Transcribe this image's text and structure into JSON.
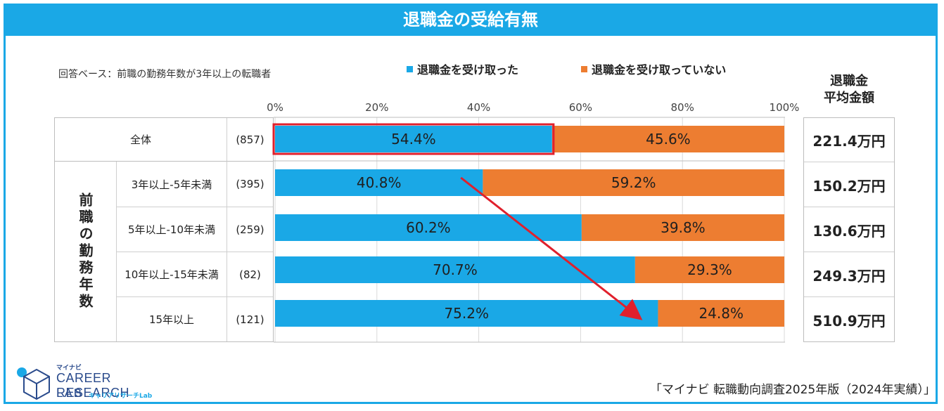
{
  "title": "退職金の受給有無",
  "base_note": "回答ベース：前職の勤務年数が3年以上の転職者",
  "legend": {
    "received": {
      "label": "退職金を受け取った",
      "color": "#1aa8e6"
    },
    "not_received": {
      "label": "退職金を受け取っていない",
      "color": "#ed7d31"
    }
  },
  "avg_header": {
    "line1": "退職金",
    "line2": "平均金額"
  },
  "group_label": "前職の勤務年数",
  "rows": [
    {
      "label": "全体",
      "n": "(857)",
      "avg": "221.4万円"
    },
    {
      "label": "3年以上-5年未満",
      "n": "(395)",
      "avg": "150.2万円"
    },
    {
      "label": "5年以上-10年未満",
      "n": "(259)",
      "avg": "130.6万円"
    },
    {
      "label": "10年以上-15年未満",
      "n": "(82)",
      "avg": "249.3万円"
    },
    {
      "label": "15年以上",
      "n": "(121)",
      "avg": "510.9万円"
    }
  ],
  "chart_data": {
    "type": "bar",
    "orientation": "horizontal",
    "stacked": true,
    "title": "退職金の受給有無",
    "categories": [
      "全体",
      "3年以上-5年未満",
      "5年以上-10年未満",
      "10年以上-15年未満",
      "15年以上"
    ],
    "series": [
      {
        "name": "退職金を受け取った",
        "values": [
          54.4,
          40.8,
          60.2,
          70.7,
          75.2
        ],
        "color": "#1aa8e6"
      },
      {
        "name": "退職金を受け取っていない",
        "values": [
          45.6,
          59.2,
          39.8,
          29.3,
          24.8
        ],
        "color": "#ed7d31"
      }
    ],
    "data_labels": [
      [
        "54.4%",
        "40.8%",
        "60.2%",
        "70.7%",
        "75.2%"
      ],
      [
        "45.6%",
        "59.2%",
        "39.8%",
        "29.3%",
        "24.8%"
      ]
    ],
    "x_ticks": [
      "0%",
      "20%",
      "40%",
      "60%",
      "80%",
      "100%"
    ],
    "xlim": [
      0,
      100
    ],
    "grid": true,
    "annotations": [
      "全体の受け取った割合を赤枠で強調",
      "勤務年数が長いほど受け取った割合が増加することを示す赤矢印"
    ]
  },
  "footer": {
    "source": "「マイナビ 転職動向調査2025年版（2024年実績）」",
    "logo_small": "マイナビ",
    "logo_main": "CAREER RESEARCH",
    "logo_lab": "LAB",
    "logo_kana": "キャリアリサーチLab"
  }
}
